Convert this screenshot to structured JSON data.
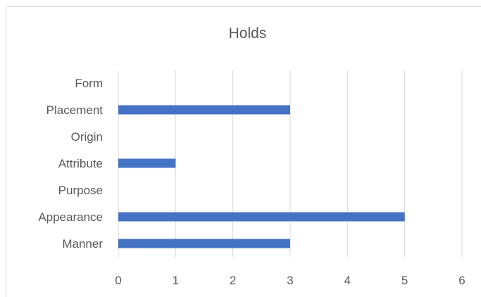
{
  "chart_data": {
    "type": "bar",
    "orientation": "horizontal",
    "title": "Holds",
    "categories": [
      "Form",
      "Placement",
      "Origin",
      "Attribute",
      "Purpose",
      "Appearance",
      "Manner"
    ],
    "values": [
      0,
      3,
      0,
      1,
      0,
      5,
      3
    ],
    "xlim": [
      0,
      6
    ],
    "xticks": [
      0,
      1,
      2,
      3,
      4,
      5,
      6
    ],
    "xlabel": "",
    "ylabel": "",
    "grid": "vertical",
    "legend": "none",
    "bar_color": "#4472c4",
    "grid_color": "#d9d9d9",
    "text_color": "#595959"
  }
}
